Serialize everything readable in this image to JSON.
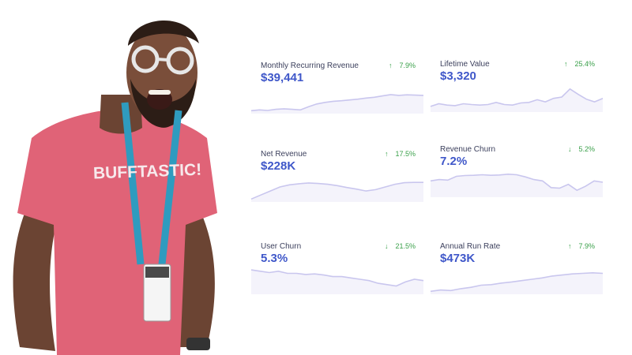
{
  "badge": {
    "brand_text": "BUFFTASTIC!"
  },
  "metrics": [
    {
      "label": "Monthly Recurring Revenue",
      "value": "$39,441",
      "delta": "7.9%",
      "direction": "up",
      "trend": [
        0.05,
        0.08,
        0.06,
        0.1,
        0.12,
        0.1,
        0.08,
        0.2,
        0.3,
        0.36,
        0.4,
        0.42,
        0.45,
        0.48,
        0.52,
        0.55,
        0.6,
        0.65,
        0.62,
        0.64,
        0.63,
        0.62
      ]
    },
    {
      "label": "Lifetime Value",
      "value": "$3,320",
      "delta": "25.4%",
      "direction": "up",
      "trend": [
        0.15,
        0.25,
        0.2,
        0.18,
        0.25,
        0.22,
        0.2,
        0.22,
        0.3,
        0.22,
        0.2,
        0.28,
        0.3,
        0.4,
        0.32,
        0.45,
        0.5,
        0.8,
        0.6,
        0.42,
        0.32,
        0.45
      ]
    },
    {
      "label": "Net Revenue",
      "value": "$228K",
      "delta": "17.5%",
      "direction": "up",
      "trend": [
        0.05,
        0.2,
        0.35,
        0.5,
        0.58,
        0.62,
        0.65,
        0.63,
        0.6,
        0.55,
        0.48,
        0.42,
        0.35,
        0.4,
        0.5,
        0.6,
        0.66,
        0.67,
        0.67
      ]
    },
    {
      "label": "Revenue Churn",
      "value": "7.2%",
      "delta": "5.2%",
      "direction": "down",
      "trend": [
        0.55,
        0.6,
        0.58,
        0.72,
        0.75,
        0.76,
        0.78,
        0.76,
        0.77,
        0.8,
        0.78,
        0.7,
        0.6,
        0.55,
        0.3,
        0.28,
        0.42,
        0.2,
        0.35,
        0.55,
        0.5
      ]
    },
    {
      "label": "User Churn",
      "value": "5.3%",
      "delta": "21.5%",
      "direction": "down",
      "trend": [
        0.85,
        0.8,
        0.75,
        0.8,
        0.72,
        0.72,
        0.68,
        0.7,
        0.66,
        0.6,
        0.6,
        0.55,
        0.5,
        0.45,
        0.35,
        0.3,
        0.25,
        0.4,
        0.5,
        0.45
      ]
    },
    {
      "label": "Annual Run Rate",
      "value": "$473K",
      "delta": "7.9%",
      "direction": "up",
      "trend": [
        0.05,
        0.1,
        0.08,
        0.15,
        0.2,
        0.28,
        0.3,
        0.36,
        0.4,
        0.45,
        0.5,
        0.55,
        0.62,
        0.66,
        0.7,
        0.72,
        0.74,
        0.72
      ]
    }
  ],
  "colors": {
    "accent": "#3f57c9",
    "positive": "#3aa04a",
    "spark_line": "#c9c6ee",
    "spark_fill": "#f4f3fb",
    "shirt": "#e06377"
  }
}
